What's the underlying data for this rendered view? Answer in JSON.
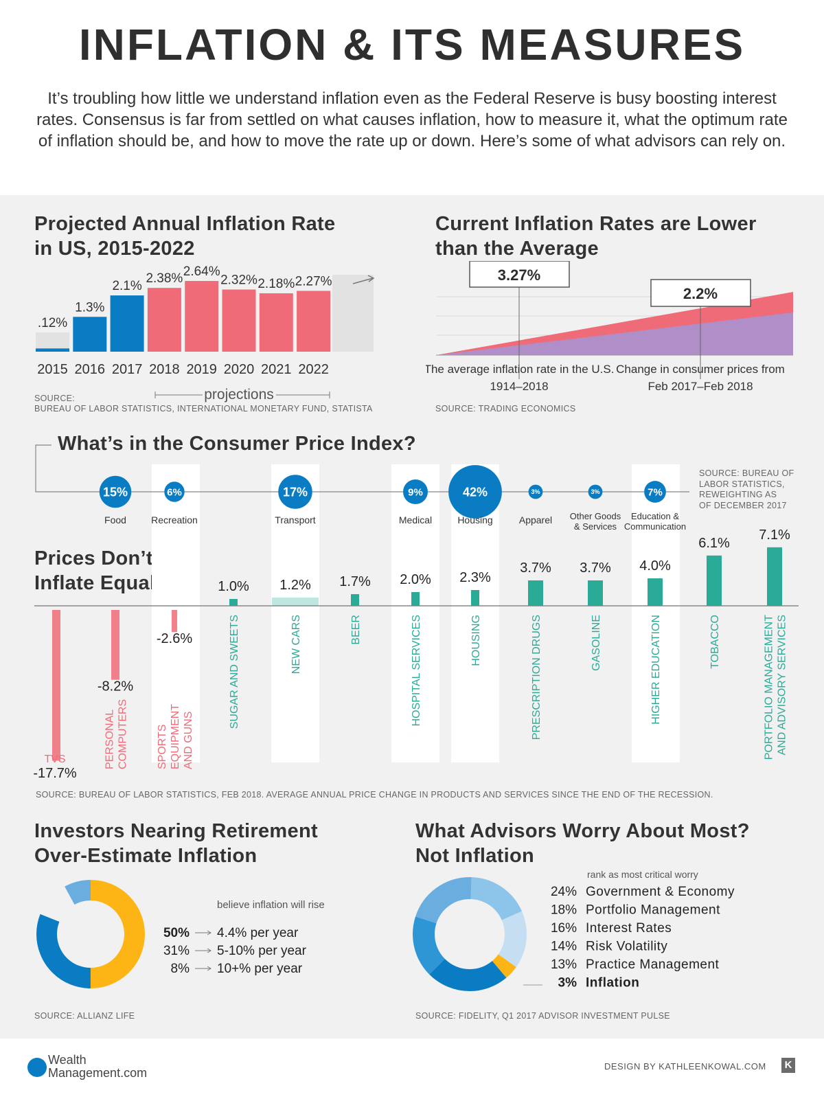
{
  "header": {
    "title": "INFLATION & ITS MEASURES",
    "intro": "It’s troubling how little we understand inflation even as the Federal Reserve is busy boosting interest rates. Consensus is far from settled on what causes inflation, how to measure it, what the optimum rate of inflation should be, and how to move the rate up or down. Here’s some of what advisors can rely on."
  },
  "projected": {
    "title_line1": "Projected Annual Inflation Rate",
    "title_line2": "in US, 2015-2022",
    "projections_label": "projections",
    "source_line1": "SOURCE:",
    "source_line2": "BUREAU OF LABOR STATISTICS, INTERNATIONAL MONETARY FUND, STATISTA"
  },
  "current": {
    "title_line1": "Current Inflation Rates are Lower",
    "title_line2": "than the Average",
    "avg_value": "3.27%",
    "cur_value": "2.2%",
    "avg_caption_1": "The average inflation rate in the U.S.",
    "avg_caption_2": "1914–2018",
    "cur_caption_1": "Change in consumer prices from",
    "cur_caption_2": "Feb 2017–Feb 2018",
    "source": "SOURCE: TRADING ECONOMICS"
  },
  "cpi": {
    "title": "What’s in the Consumer Price Index?",
    "source_lines": [
      "SOURCE: BUREAU OF",
      "LABOR STATISTICS,",
      "REWEIGHTING AS",
      "OF DECEMBER 2017"
    ]
  },
  "prices": {
    "title_line1": "Prices Don’t",
    "title_line2": "Inflate Equally",
    "source": "SOURCE: BUREAU OF LABOR STATISTICS, FEB 2018. AVERAGE ANNUAL PRICE CHANGE IN PRODUCTS AND SERVICES SINCE THE END OF THE RECESSION."
  },
  "investors": {
    "title_line1": "Investors Nearing Retirement",
    "title_line2": "Over-Estimate Inflation",
    "note": "believe inflation will rise",
    "source": "SOURCE: ALLIANZ LIFE"
  },
  "advisors": {
    "title_line1": "What Advisors Worry About Most?",
    "title_line2": "Not Inflation",
    "note": "rank as most critical worry",
    "source": "SOURCE: FIDELITY, Q1 2017 ADVISOR INVESTMENT PULSE"
  },
  "footer": {
    "logo_line1": "Wealth",
    "logo_line2": "Management.com",
    "credit": "DESIGN BY KATHLEENKOWAL.COM",
    "credit_mark": "K"
  },
  "colors": {
    "blue": "#0a7cc4",
    "red": "#f06b78",
    "gray_bar": "#e2e2e2",
    "teal": "#2aab98",
    "pink": "#f06b78",
    "yellow": "#fdb515",
    "purple": "#b08fc8"
  },
  "chart_data": [
    {
      "type": "bar",
      "categories": [
        "2015",
        "2016",
        "2017",
        "2018",
        "2019",
        "2020",
        "2021",
        "2022"
      ],
      "values": [
        0.12,
        1.3,
        2.1,
        2.38,
        2.64,
        2.32,
        2.18,
        2.27
      ],
      "value_labels": [
        ".12%",
        "1.3%",
        "2.1%",
        "2.38%",
        "2.64%",
        "2.32%",
        "2.18%",
        "2.27%"
      ],
      "projected": [
        false,
        false,
        false,
        true,
        true,
        true,
        true,
        true
      ]
    },
    {
      "type": "area",
      "labels": [
        "3.27%",
        "2.2%"
      ],
      "values": [
        3.27,
        2.2
      ]
    },
    {
      "type": "bubble",
      "categories": [
        "Food",
        "Recreation",
        "Transport",
        "Medical",
        "Housing",
        "Apparel",
        "Other Goods & Services",
        "Education & Communication"
      ],
      "values": [
        15,
        6,
        17,
        9,
        42,
        3,
        3,
        7
      ],
      "value_labels": [
        "15%",
        "6%",
        "17%",
        "9%",
        "42%",
        "3%",
        "3%",
        "7%"
      ]
    },
    {
      "type": "bar",
      "categories": [
        "TVS",
        "PERSONAL COMPUTERS",
        "SPORTS EQUIPMENT AND GUNS",
        "SUGAR AND SWEETS",
        "NEW CARS",
        "BEER",
        "HOSPITAL SERVICES",
        "HOUSING",
        "PRESCRIPTION DRUGS",
        "GASOLINE",
        "HIGHER EDUCATION",
        "TOBACCO",
        "PORTFOLIO MANAGEMENT AND ADVISORY SERVICES"
      ],
      "values": [
        -17.7,
        -8.2,
        -2.6,
        1.0,
        1.2,
        1.7,
        2.0,
        2.3,
        3.7,
        3.7,
        4.0,
        6.1,
        7.1
      ],
      "value_labels": [
        "-17.7%",
        "-8.2%",
        "-2.6%",
        "1.0%",
        "1.2%",
        "1.7%",
        "2.0%",
        "2.3%",
        "3.7%",
        "3.7%",
        "4.0%",
        "6.1%",
        "7.1%"
      ]
    },
    {
      "type": "pie",
      "labels": [
        "4.4% per year",
        "5-10% per year",
        "10+% per year"
      ],
      "values": [
        50,
        31,
        8
      ],
      "value_labels": [
        "50%",
        "31%",
        "8%"
      ]
    },
    {
      "type": "pie",
      "labels": [
        "Government & Economy",
        "Portfolio Management",
        "Interest Rates",
        "Risk Volatility",
        "Practice Management",
        "Inflation"
      ],
      "values": [
        24,
        18,
        16,
        14,
        13,
        3
      ],
      "value_labels": [
        "24%",
        "18%",
        "16%",
        "14%",
        "13%",
        "3%"
      ]
    }
  ]
}
